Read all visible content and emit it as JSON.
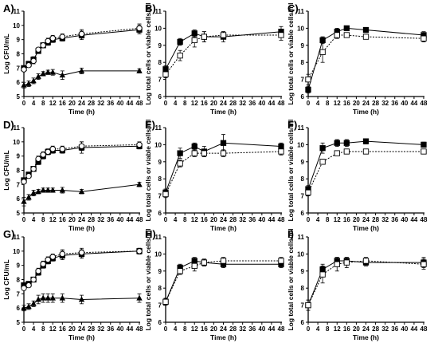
{
  "chart_data": [
    {
      "panel": "A)",
      "type": "line",
      "ylabel": "Log CFU/mL",
      "xlabel": "Time (h)",
      "xlim": [
        0,
        48
      ],
      "ylim": [
        5,
        11
      ],
      "xticks": [
        0,
        4,
        8,
        12,
        16,
        20,
        24,
        28,
        32,
        36,
        40,
        44,
        48
      ],
      "yticks": [
        5,
        6,
        7,
        8,
        9,
        10,
        11
      ],
      "series": [
        {
          "marker": "square-filled",
          "line": "solid",
          "x": [
            0,
            2,
            4,
            6,
            8,
            10,
            12,
            16,
            24,
            48
          ],
          "y": [
            7.0,
            7.3,
            7.6,
            8.2,
            8.6,
            8.8,
            9.0,
            9.1,
            9.3,
            9.7
          ],
          "err": [
            0.15,
            0.15,
            0.2,
            0.15,
            0.15,
            0.2,
            0.2,
            0.2,
            0.3,
            0.3
          ]
        },
        {
          "marker": "circle-open",
          "line": "dotted",
          "x": [
            0,
            2,
            4,
            6,
            8,
            10,
            12,
            16,
            24,
            48
          ],
          "y": [
            6.9,
            7.2,
            7.5,
            8.3,
            8.6,
            8.9,
            9.1,
            9.2,
            9.4,
            9.8
          ],
          "err": [
            0.15,
            0.15,
            0.2,
            0.15,
            0.15,
            0.2,
            0.2,
            0.2,
            0.3,
            0.3
          ]
        },
        {
          "marker": "triangle-filled",
          "line": "solid",
          "x": [
            0,
            2,
            4,
            6,
            8,
            10,
            12,
            16,
            24,
            48
          ],
          "y": [
            5.8,
            5.9,
            6.1,
            6.4,
            6.6,
            6.7,
            6.7,
            6.5,
            6.8,
            6.8
          ],
          "err": [
            0.2,
            0.2,
            0.2,
            0.2,
            0.15,
            0.15,
            0.2,
            0.3,
            0.2,
            0.15
          ]
        }
      ]
    },
    {
      "panel": "B)",
      "type": "line",
      "ylabel": "Log total cells or viable cells/ml",
      "xlabel": "Time (h)",
      "xlim": [
        0,
        48
      ],
      "ylim": [
        6,
        11
      ],
      "xticks": [
        0,
        4,
        8,
        12,
        16,
        20,
        24,
        28,
        32,
        36,
        40,
        44,
        48
      ],
      "yticks": [
        6,
        7,
        8,
        9,
        10,
        11
      ],
      "series": [
        {
          "marker": "square-filled",
          "line": "solid",
          "x": [
            0,
            6,
            12,
            16,
            24,
            48
          ],
          "y": [
            7.6,
            9.2,
            9.7,
            9.5,
            9.5,
            9.8
          ],
          "err": [
            0.2,
            0.2,
            0.2,
            0.3,
            0.3,
            0.3
          ]
        },
        {
          "marker": "square-open",
          "line": "dotted",
          "x": [
            0,
            6,
            12,
            16,
            24,
            48
          ],
          "y": [
            7.3,
            8.4,
            9.3,
            9.5,
            9.6,
            9.6
          ],
          "err": [
            0.2,
            0.3,
            0.4,
            0.3,
            0.2,
            0.3
          ]
        }
      ]
    },
    {
      "panel": "C)",
      "type": "line",
      "ylabel": "Log total cells or viable cells/ml",
      "xlabel": "Time (h)",
      "xlim": [
        0,
        48
      ],
      "ylim": [
        6,
        11
      ],
      "xticks": [
        0,
        4,
        8,
        12,
        16,
        20,
        24,
        28,
        32,
        36,
        40,
        44,
        48
      ],
      "yticks": [
        6,
        7,
        8,
        9,
        10,
        11
      ],
      "series": [
        {
          "marker": "square-filled",
          "line": "solid",
          "x": [
            0,
            6,
            12,
            16,
            24,
            48
          ],
          "y": [
            6.4,
            9.3,
            9.8,
            10.0,
            9.9,
            9.6
          ],
          "err": [
            0.2,
            0.2,
            0.2,
            0.1,
            0.1,
            0.2
          ]
        },
        {
          "marker": "square-open",
          "line": "dotted",
          "x": [
            0,
            6,
            12,
            16,
            24,
            48
          ],
          "y": [
            7.0,
            8.6,
            9.6,
            9.6,
            9.5,
            9.4
          ],
          "err": [
            0.3,
            0.6,
            0.2,
            0.1,
            0.1,
            0.2
          ]
        }
      ]
    },
    {
      "panel": "D)",
      "type": "line",
      "ylabel": "Log CFU/mL",
      "xlabel": "Time (h)",
      "xlim": [
        0,
        48
      ],
      "ylim": [
        5,
        11
      ],
      "xticks": [
        0,
        4,
        8,
        12,
        16,
        20,
        24,
        28,
        32,
        36,
        40,
        44,
        48
      ],
      "yticks": [
        5,
        6,
        7,
        8,
        9,
        10,
        11
      ],
      "series": [
        {
          "marker": "square-filled",
          "line": "solid",
          "x": [
            0,
            2,
            4,
            6,
            8,
            10,
            12,
            16,
            24,
            48
          ],
          "y": [
            7.3,
            7.7,
            8.1,
            8.6,
            9.0,
            9.3,
            9.4,
            9.4,
            9.6,
            9.7
          ],
          "err": [
            0.15,
            0.15,
            0.15,
            0.2,
            0.2,
            0.2,
            0.2,
            0.2,
            0.4,
            0.2
          ]
        },
        {
          "marker": "circle-open",
          "line": "dotted",
          "x": [
            0,
            2,
            4,
            6,
            8,
            10,
            12,
            16,
            24,
            48
          ],
          "y": [
            7.2,
            7.6,
            8.1,
            8.8,
            9.1,
            9.3,
            9.5,
            9.5,
            9.7,
            9.8
          ],
          "err": [
            0.15,
            0.15,
            0.15,
            0.2,
            0.2,
            0.2,
            0.2,
            0.2,
            0.3,
            0.2
          ]
        },
        {
          "marker": "triangle-filled",
          "line": "solid",
          "x": [
            0,
            2,
            4,
            6,
            8,
            10,
            12,
            16,
            24,
            48
          ],
          "y": [
            5.8,
            6.1,
            6.4,
            6.5,
            6.6,
            6.6,
            6.6,
            6.6,
            6.5,
            7.0
          ],
          "err": [
            0.3,
            0.2,
            0.2,
            0.15,
            0.15,
            0.15,
            0.15,
            0.2,
            0.15,
            0.15
          ]
        }
      ]
    },
    {
      "panel": "E)",
      "type": "line",
      "ylabel": "Log total cells or viable cells/ml",
      "xlabel": "Time (h)",
      "xlim": [
        0,
        48
      ],
      "ylim": [
        6,
        11
      ],
      "xticks": [
        0,
        4,
        8,
        12,
        16,
        20,
        24,
        28,
        32,
        36,
        40,
        44,
        48
      ],
      "yticks": [
        6,
        7,
        8,
        9,
        10,
        11
      ],
      "series": [
        {
          "marker": "square-filled",
          "line": "solid",
          "x": [
            0,
            6,
            12,
            16,
            24,
            48
          ],
          "y": [
            7.2,
            9.5,
            9.9,
            9.6,
            10.1,
            9.9
          ],
          "err": [
            0.2,
            0.3,
            0.2,
            0.3,
            0.5,
            0.2
          ]
        },
        {
          "marker": "square-open",
          "line": "dotted",
          "x": [
            0,
            6,
            12,
            16,
            24,
            48
          ],
          "y": [
            7.1,
            8.9,
            9.5,
            9.5,
            9.5,
            9.6
          ],
          "err": [
            0.2,
            0.2,
            0.2,
            0.2,
            0.2,
            0.2
          ]
        }
      ]
    },
    {
      "panel": "F)",
      "type": "line",
      "ylabel": "Log total cells or viable cells/ml",
      "xlabel": "Time (h)",
      "xlim": [
        0,
        48
      ],
      "ylim": [
        6,
        11
      ],
      "xticks": [
        0,
        4,
        8,
        12,
        16,
        20,
        24,
        28,
        32,
        36,
        40,
        44,
        48
      ],
      "yticks": [
        6,
        7,
        8,
        9,
        10,
        11
      ],
      "series": [
        {
          "marker": "square-filled",
          "line": "solid",
          "x": [
            0,
            6,
            12,
            16,
            24,
            48
          ],
          "y": [
            7.4,
            9.8,
            10.1,
            10.1,
            10.2,
            10.0
          ],
          "err": [
            0.2,
            0.3,
            0.2,
            0.2,
            0.15,
            0.15
          ]
        },
        {
          "marker": "square-open",
          "line": "dotted",
          "x": [
            0,
            6,
            12,
            16,
            24,
            48
          ],
          "y": [
            7.2,
            9.0,
            9.5,
            9.6,
            9.6,
            9.6
          ],
          "err": [
            0.2,
            0.15,
            0.1,
            0.1,
            0.1,
            0.1
          ]
        }
      ]
    },
    {
      "panel": "G)",
      "type": "line",
      "ylabel": "Log CFU/mL",
      "xlabel": "Time (h)",
      "xlim": [
        0,
        48
      ],
      "ylim": [
        5,
        11
      ],
      "xticks": [
        0,
        4,
        8,
        12,
        16,
        20,
        24,
        28,
        32,
        36,
        40,
        44,
        48
      ],
      "yticks": [
        5,
        6,
        7,
        8,
        9,
        10,
        11
      ],
      "series": [
        {
          "marker": "square-filled",
          "line": "solid",
          "x": [
            0,
            2,
            4,
            6,
            8,
            10,
            12,
            16,
            24,
            48
          ],
          "y": [
            7.6,
            7.7,
            8.0,
            8.5,
            9.0,
            9.3,
            9.5,
            9.7,
            9.8,
            10.0
          ],
          "err": [
            0.15,
            0.15,
            0.15,
            0.2,
            0.2,
            0.2,
            0.2,
            0.3,
            0.3,
            0.2
          ]
        },
        {
          "marker": "circle-open",
          "line": "dotted",
          "x": [
            0,
            2,
            4,
            6,
            8,
            10,
            12,
            16,
            24,
            48
          ],
          "y": [
            7.4,
            7.6,
            8.0,
            8.6,
            9.1,
            9.4,
            9.6,
            9.8,
            9.9,
            10.0
          ],
          "err": [
            0.15,
            0.15,
            0.15,
            0.2,
            0.2,
            0.2,
            0.2,
            0.3,
            0.3,
            0.2
          ]
        },
        {
          "marker": "triangle-filled",
          "line": "solid",
          "x": [
            0,
            2,
            4,
            6,
            8,
            10,
            12,
            16,
            24,
            48
          ],
          "y": [
            6.0,
            6.1,
            6.3,
            6.6,
            6.7,
            6.7,
            6.7,
            6.7,
            6.6,
            6.7
          ],
          "err": [
            0.2,
            0.2,
            0.2,
            0.3,
            0.3,
            0.3,
            0.3,
            0.3,
            0.3,
            0.3
          ]
        }
      ]
    },
    {
      "panel": "H)",
      "type": "line",
      "ylabel": "Log total cells or viable cells/ml",
      "xlabel": "Time (h)",
      "xlim": [
        0,
        48
      ],
      "ylim": [
        6,
        11
      ],
      "xticks": [
        0,
        4,
        8,
        12,
        16,
        20,
        24,
        28,
        32,
        36,
        40,
        44,
        48
      ],
      "yticks": [
        6,
        7,
        8,
        9,
        10,
        11
      ],
      "series": [
        {
          "marker": "square-filled",
          "line": "solid",
          "x": [
            0,
            6,
            12,
            16,
            24,
            48
          ],
          "y": [
            7.2,
            9.2,
            9.6,
            9.5,
            9.4,
            9.4
          ],
          "err": [
            0.2,
            0.2,
            0.2,
            0.2,
            0.2,
            0.2
          ]
        },
        {
          "marker": "square-open",
          "line": "dotted",
          "x": [
            0,
            6,
            12,
            16,
            24,
            48
          ],
          "y": [
            7.2,
            9.0,
            9.3,
            9.5,
            9.6,
            9.6
          ],
          "err": [
            0.2,
            0.2,
            0.3,
            0.2,
            0.2,
            0.2
          ]
        }
      ]
    },
    {
      "panel": "I)",
      "type": "line",
      "ylabel": "Log total cells or viable cells/ml",
      "xlabel": "Time (h)",
      "xlim": [
        0,
        48
      ],
      "ylim": [
        6,
        11
      ],
      "xticks": [
        0,
        4,
        8,
        12,
        16,
        20,
        24,
        28,
        32,
        36,
        40,
        44,
        48
      ],
      "yticks": [
        6,
        7,
        8,
        9,
        10,
        11
      ],
      "series": [
        {
          "marker": "square-filled",
          "line": "solid",
          "x": [
            0,
            6,
            12,
            16,
            24,
            48
          ],
          "y": [
            7.0,
            9.1,
            9.6,
            9.6,
            9.5,
            9.5
          ],
          "err": [
            0.3,
            0.3,
            0.2,
            0.2,
            0.2,
            0.3
          ]
        },
        {
          "marker": "square-open",
          "line": "dotted",
          "x": [
            0,
            6,
            12,
            16,
            24,
            48
          ],
          "y": [
            7.0,
            8.8,
            9.4,
            9.5,
            9.6,
            9.4
          ],
          "err": [
            0.3,
            0.5,
            0.4,
            0.3,
            0.2,
            0.3
          ]
        }
      ]
    }
  ]
}
